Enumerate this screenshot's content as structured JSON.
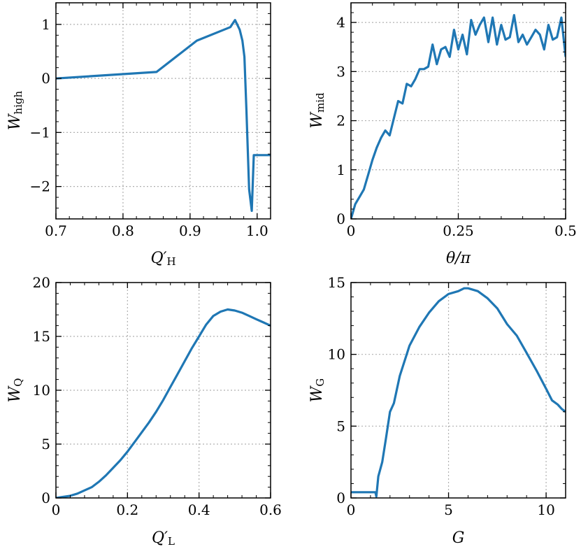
{
  "colors": {
    "line": "#1f77b4",
    "grid": "#b0b0b0",
    "axes": "#000000"
  },
  "chart_data": [
    {
      "id": "top-left",
      "type": "line",
      "title": "",
      "xlabel": {
        "main": "Q′",
        "sub": "H"
      },
      "ylabel": {
        "main": "W",
        "sub": "high"
      },
      "xlim": [
        0.7,
        1.02
      ],
      "ylim": [
        -2.6,
        1.4
      ],
      "xticks": [
        0.7,
        0.8,
        0.9,
        1.0
      ],
      "xtick_labels": [
        "0.7",
        "0.8",
        "0.9",
        "1.0"
      ],
      "yticks": [
        -2,
        -1,
        0,
        1
      ],
      "ytick_labels": [
        "−2",
        "−1",
        "0",
        "1"
      ],
      "grid": true,
      "x": [
        0.7,
        0.85,
        0.91,
        0.96,
        0.967,
        0.974,
        0.978,
        0.981,
        0.984,
        0.988,
        0.992,
        0.995,
        1.0,
        1.02
      ],
      "y": [
        0.0,
        0.12,
        0.7,
        0.95,
        1.08,
        0.9,
        0.7,
        0.4,
        -0.6,
        -2.05,
        -2.45,
        -1.42,
        -1.42,
        -1.42
      ]
    },
    {
      "id": "top-right",
      "type": "line",
      "title": "",
      "xlabel": {
        "main": "θ/π",
        "sub": ""
      },
      "ylabel": {
        "main": "W",
        "sub": "mid"
      },
      "xlim": [
        0,
        0.5
      ],
      "ylim": [
        0,
        4.4
      ],
      "xticks": [
        0,
        0.25,
        0.5
      ],
      "xtick_labels": [
        "0",
        "0.25",
        "0.5"
      ],
      "yticks": [
        0,
        1,
        2,
        3,
        4
      ],
      "ytick_labels": [
        "0",
        "1",
        "2",
        "3",
        "4"
      ],
      "grid": true,
      "x": [
        0,
        0.01,
        0.02,
        0.03,
        0.04,
        0.05,
        0.06,
        0.07,
        0.08,
        0.09,
        0.1,
        0.11,
        0.12,
        0.13,
        0.14,
        0.15,
        0.16,
        0.17,
        0.18,
        0.19,
        0.2,
        0.21,
        0.22,
        0.23,
        0.24,
        0.25,
        0.26,
        0.27,
        0.28,
        0.29,
        0.3,
        0.31,
        0.32,
        0.33,
        0.34,
        0.35,
        0.36,
        0.37,
        0.38,
        0.39,
        0.4,
        0.41,
        0.42,
        0.43,
        0.44,
        0.45,
        0.46,
        0.47,
        0.48,
        0.49,
        0.5
      ],
      "y": [
        0.0,
        0.3,
        0.45,
        0.6,
        0.9,
        1.2,
        1.45,
        1.65,
        1.8,
        1.7,
        2.05,
        2.4,
        2.35,
        2.75,
        2.7,
        2.85,
        3.05,
        3.05,
        3.1,
        3.55,
        3.15,
        3.45,
        3.5,
        3.3,
        3.85,
        3.45,
        3.75,
        3.35,
        4.05,
        3.75,
        3.95,
        4.1,
        3.6,
        4.1,
        3.55,
        3.95,
        3.65,
        3.7,
        4.15,
        3.6,
        3.75,
        3.55,
        3.7,
        3.85,
        3.75,
        3.45,
        3.95,
        3.65,
        3.7,
        4.1,
        3.3
      ]
    },
    {
      "id": "bottom-left",
      "type": "line",
      "title": "",
      "xlabel": {
        "main": "Q′",
        "sub": "L"
      },
      "ylabel": {
        "main": "W",
        "sub": "Q"
      },
      "xlim": [
        0,
        0.6
      ],
      "ylim": [
        0,
        20
      ],
      "xticks": [
        0,
        0.2,
        0.4,
        0.6
      ],
      "xtick_labels": [
        "0",
        "0.2",
        "0.4",
        "0.6"
      ],
      "yticks": [
        0,
        5,
        10,
        15,
        20
      ],
      "ytick_labels": [
        "0",
        "5",
        "10",
        "15",
        "20"
      ],
      "grid": true,
      "x": [
        0,
        0.02,
        0.04,
        0.06,
        0.08,
        0.1,
        0.12,
        0.14,
        0.16,
        0.18,
        0.2,
        0.22,
        0.24,
        0.26,
        0.28,
        0.3,
        0.32,
        0.34,
        0.36,
        0.38,
        0.4,
        0.42,
        0.44,
        0.46,
        0.48,
        0.5,
        0.52,
        0.54,
        0.56,
        0.58,
        0.6
      ],
      "y": [
        0.0,
        0.1,
        0.2,
        0.4,
        0.7,
        1.0,
        1.5,
        2.1,
        2.8,
        3.5,
        4.3,
        5.2,
        6.1,
        7.0,
        8.0,
        9.1,
        10.3,
        11.5,
        12.7,
        13.9,
        15.0,
        16.1,
        16.9,
        17.3,
        17.5,
        17.4,
        17.2,
        16.9,
        16.6,
        16.3,
        16.0
      ]
    },
    {
      "id": "bottom-right",
      "type": "line",
      "title": "",
      "xlabel": {
        "main": "G",
        "sub": ""
      },
      "ylabel": {
        "main": "W",
        "sub": "G"
      },
      "xlim": [
        0,
        11
      ],
      "ylim": [
        0,
        15
      ],
      "xticks": [
        0,
        5,
        10
      ],
      "xtick_labels": [
        "0",
        "5",
        "10"
      ],
      "yticks": [
        0,
        5,
        10,
        15
      ],
      "ytick_labels": [
        "0",
        "5",
        "10",
        "15"
      ],
      "grid": true,
      "x": [
        0,
        0.5,
        1.0,
        1.25,
        1.3,
        1.4,
        1.6,
        1.8,
        2.0,
        2.2,
        2.5,
        3.0,
        3.5,
        4.0,
        4.5,
        5.0,
        5.5,
        5.8,
        6.0,
        6.5,
        7.0,
        7.5,
        8.0,
        8.5,
        9.0,
        9.5,
        10.0,
        10.3,
        10.6,
        10.8,
        11.0
      ],
      "y": [
        0.4,
        0.4,
        0.4,
        0.4,
        0.1,
        1.5,
        2.5,
        4.2,
        6.0,
        6.6,
        8.5,
        10.6,
        11.9,
        12.9,
        13.7,
        14.2,
        14.4,
        14.6,
        14.6,
        14.4,
        13.9,
        13.2,
        12.1,
        11.3,
        10.1,
        8.9,
        7.6,
        6.8,
        6.5,
        6.2,
        6.0
      ]
    }
  ]
}
